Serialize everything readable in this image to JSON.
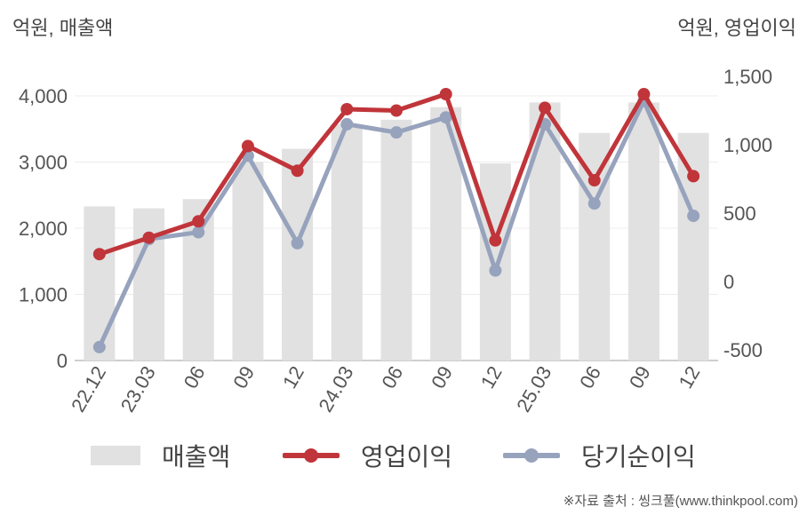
{
  "chart_data": {
    "type": "bar+line",
    "unit_left": "억원, 매출액",
    "unit_right": "억원, 영업이익",
    "categories": [
      "22.12",
      "23.03",
      "06",
      "09",
      "12",
      "24.03",
      "06",
      "09",
      "12",
      "25.03",
      "06",
      "09",
      "12"
    ],
    "y_left": {
      "ticks": [
        "0",
        "1,000",
        "2,000",
        "3,000",
        "4,000"
      ],
      "min": 0,
      "max": 4000,
      "tick_values": [
        0,
        1000,
        2000,
        3000,
        4000
      ]
    },
    "y_right": {
      "ticks": [
        "-500",
        "0",
        "500",
        "1,000",
        "1,500"
      ],
      "min": -500,
      "max": 1500,
      "tick_values": [
        -500,
        0,
        500,
        1000,
        1500
      ]
    },
    "grid": true,
    "legend_position": "bottom",
    "series": [
      {
        "name": "매출액",
        "type": "bar",
        "axis": "left",
        "color": "#e1e1e1",
        "values": [
          2330,
          2300,
          2440,
          3000,
          3200,
          3570,
          3640,
          3830,
          2980,
          3900,
          3440,
          3900,
          3440
        ]
      },
      {
        "name": "영업이익",
        "type": "line",
        "axis": "right",
        "color": "#c0353a",
        "values": [
          200,
          320,
          440,
          990,
          810,
          1260,
          1250,
          1370,
          300,
          1270,
          740,
          1370,
          770
        ]
      },
      {
        "name": "당기순이익",
        "type": "line",
        "axis": "right",
        "color": "#97a3bd",
        "values": [
          -480,
          310,
          360,
          920,
          280,
          1150,
          1090,
          1200,
          80,
          1150,
          570,
          1320,
          480
        ]
      }
    ]
  },
  "source": "※자료 출처 : 씽크풀(www.thinkpool.com)"
}
